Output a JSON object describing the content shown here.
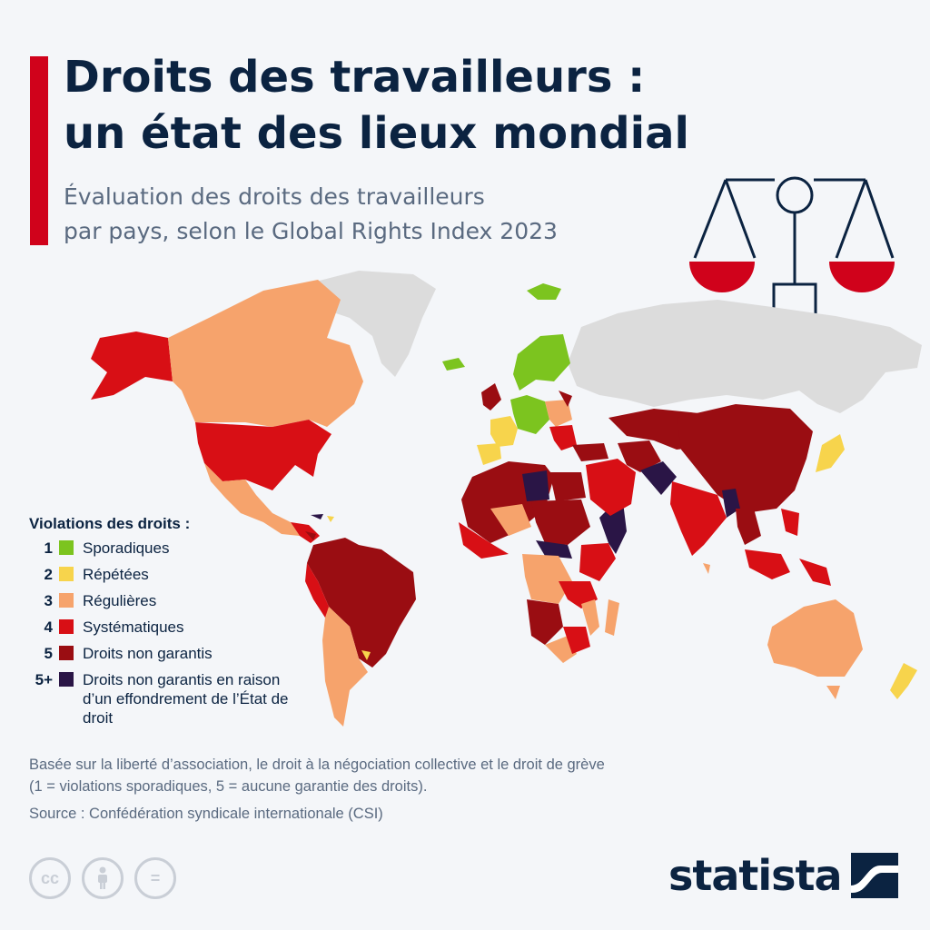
{
  "title": {
    "line1": "Droits des travailleurs :",
    "line2": "un état des lieux mondial"
  },
  "subtitle": {
    "line1": "Évaluation des droits des travailleurs",
    "line2": "par pays, selon le Global Rights Index 2023"
  },
  "legend": {
    "title": "Violations des droits :",
    "items": [
      {
        "num": "1",
        "label": "Sporadiques",
        "color": "#7cc41f"
      },
      {
        "num": "2",
        "label": "Répétées",
        "color": "#f7d44c"
      },
      {
        "num": "3",
        "label": "Régulières",
        "color": "#f6a36c"
      },
      {
        "num": "4",
        "label": "Systématiques",
        "color": "#d80f15"
      },
      {
        "num": "5",
        "label": "Droits non garantis",
        "color": "#9a0d12"
      },
      {
        "num": "5+",
        "label": "Droits non garantis en raison d’un effondrement de l’État de droit",
        "color": "#2a1546"
      }
    ]
  },
  "colors": {
    "no_data": "#dcdcdc",
    "accent": "#d0021b",
    "navy": "#0b2341"
  },
  "note": {
    "line1": "Basée sur la liberté d’association, le droit à la négociation collective et le droit de grève",
    "line2": "(1 = violations sporadiques, 5 = aucune garantie des droits)."
  },
  "source": "Source : Confédération syndicale internationale (CSI)",
  "licence": {
    "cc": "cc",
    "nd": "="
  },
  "brand": "statista"
}
